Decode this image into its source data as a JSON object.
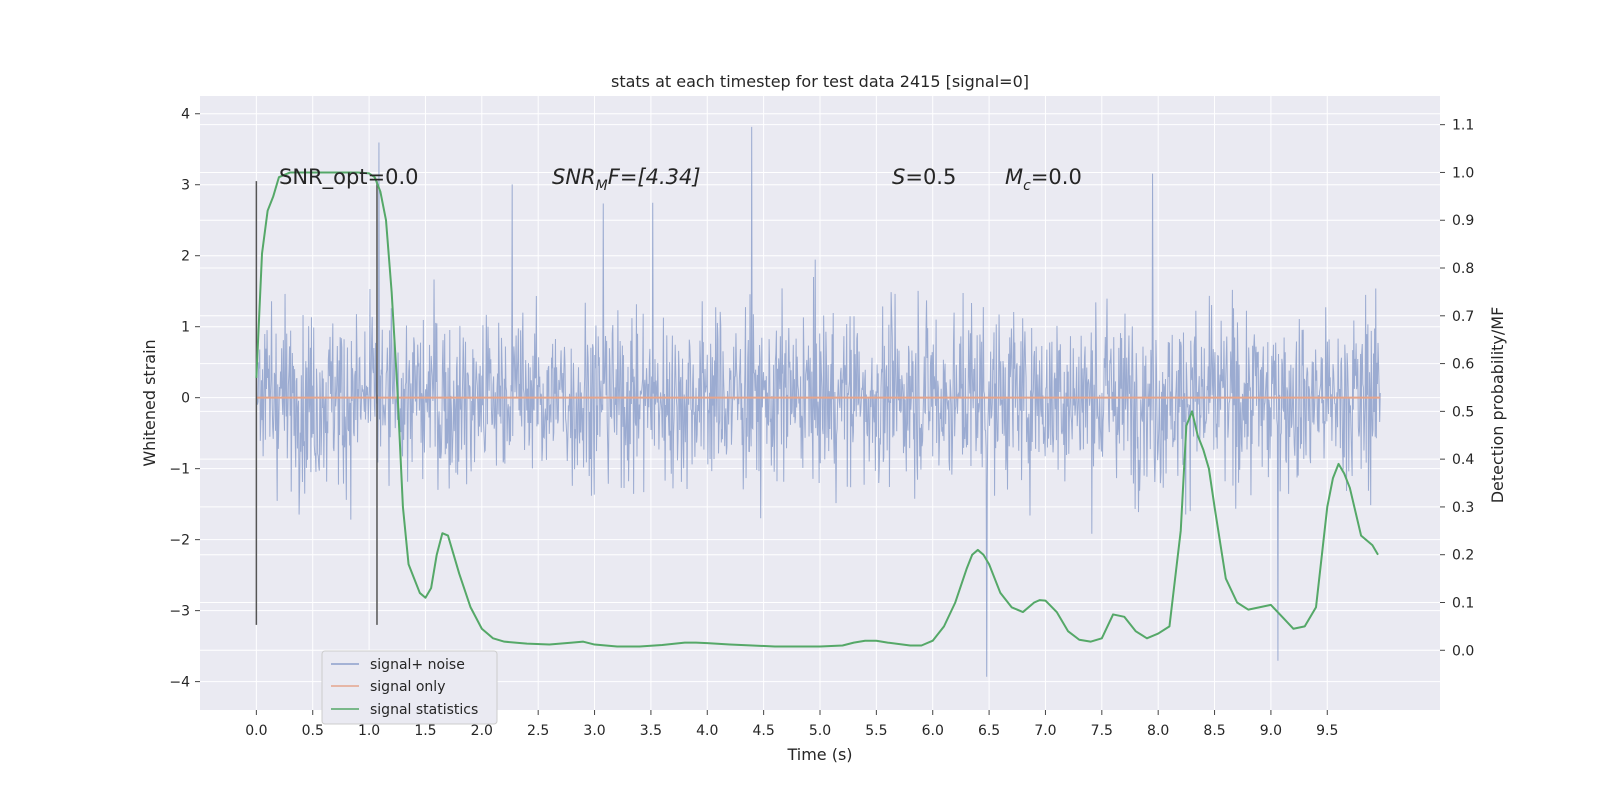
{
  "chart_data": {
    "type": "line",
    "title": "stats at each timestep for test data 2415 [signal=0]",
    "xlabel": "Time (s)",
    "ylabel": "Whitened strain",
    "ylabel_right": "Detection probability/MF",
    "xlim": [
      -0.5,
      10.5
    ],
    "ylim": [
      -4.4,
      4.25
    ],
    "ylim_right": [
      -0.125,
      1.16
    ],
    "x_ticks": [
      "0.0",
      "0.5",
      "1.0",
      "1.5",
      "2.0",
      "2.5",
      "3.0",
      "3.5",
      "4.0",
      "4.5",
      "5.0",
      "5.5",
      "6.0",
      "6.5",
      "7.0",
      "7.5",
      "8.0",
      "8.5",
      "9.0",
      "9.5"
    ],
    "y_ticks": [
      "4",
      "3",
      "2",
      "1",
      "0",
      "−1",
      "−2",
      "−3",
      "−4"
    ],
    "y_ticks_right": [
      "1.1",
      "1.0",
      "0.9",
      "0.8",
      "0.7",
      "0.6",
      "0.5",
      "0.4",
      "0.3",
      "0.2",
      "0.1",
      "0.0"
    ],
    "grid": true,
    "legend_position": "lower-left",
    "annotations": {
      "snr_opt": "SNR_opt=0.0",
      "snr_mf_main": "SNR",
      "snr_mf_sub": "M",
      "snr_mf_rest": "F=[4.34]",
      "s_label": "S",
      "s_value": "=0.5",
      "mc_main": "M",
      "mc_sub": "c",
      "mc_value": "=0.0"
    },
    "vertical_markers": [
      0.0,
      1.07
    ],
    "series": [
      {
        "name": "signal+ noise",
        "color": "#8da0cb",
        "description_kind": "noise",
        "x_range": [
          0.0,
          9.97
        ],
        "typical_range": [
          -1.3,
          1.3
        ],
        "extreme_range": [
          -4.05,
          3.9
        ]
      },
      {
        "name": "signal only",
        "color": "#e5a58c",
        "x": [
          0.0,
          9.97
        ],
        "y": [
          0.0,
          0.0
        ]
      },
      {
        "name": "signal statistics",
        "color": "#55a868",
        "axis": "right",
        "x": [
          0.0,
          0.05,
          0.1,
          0.15,
          0.2,
          0.3,
          0.5,
          0.7,
          0.9,
          1.0,
          1.05,
          1.1,
          1.15,
          1.2,
          1.25,
          1.3,
          1.35,
          1.4,
          1.45,
          1.5,
          1.55,
          1.6,
          1.65,
          1.7,
          1.75,
          1.8,
          1.9,
          2.0,
          2.1,
          2.2,
          2.4,
          2.6,
          2.8,
          2.9,
          3.0,
          3.2,
          3.4,
          3.6,
          3.8,
          3.9,
          4.0,
          4.2,
          4.4,
          4.6,
          4.8,
          5.0,
          5.2,
          5.3,
          5.4,
          5.5,
          5.6,
          5.8,
          5.9,
          6.0,
          6.1,
          6.2,
          6.3,
          6.35,
          6.4,
          6.45,
          6.5,
          6.6,
          6.7,
          6.8,
          6.9,
          6.95,
          7.0,
          7.1,
          7.2,
          7.3,
          7.4,
          7.5,
          7.6,
          7.7,
          7.8,
          7.9,
          8.0,
          8.1,
          8.2,
          8.25,
          8.3,
          8.35,
          8.4,
          8.45,
          8.5,
          8.6,
          8.7,
          8.8,
          8.9,
          9.0,
          9.1,
          9.2,
          9.3,
          9.4,
          9.5,
          9.55,
          9.6,
          9.65,
          9.7,
          9.8,
          9.9,
          9.95
        ],
        "y": [
          0.57,
          0.83,
          0.92,
          0.95,
          0.99,
          1.0,
          1.0,
          1.0,
          1.0,
          0.998,
          0.99,
          0.96,
          0.9,
          0.75,
          0.55,
          0.3,
          0.18,
          0.15,
          0.12,
          0.11,
          0.13,
          0.2,
          0.245,
          0.24,
          0.2,
          0.16,
          0.09,
          0.045,
          0.025,
          0.018,
          0.014,
          0.012,
          0.016,
          0.018,
          0.012,
          0.008,
          0.008,
          0.011,
          0.016,
          0.016,
          0.015,
          0.012,
          0.01,
          0.008,
          0.008,
          0.008,
          0.01,
          0.016,
          0.02,
          0.02,
          0.016,
          0.01,
          0.01,
          0.02,
          0.05,
          0.1,
          0.17,
          0.2,
          0.21,
          0.2,
          0.18,
          0.12,
          0.09,
          0.08,
          0.1,
          0.105,
          0.104,
          0.08,
          0.04,
          0.022,
          0.018,
          0.025,
          0.075,
          0.07,
          0.04,
          0.025,
          0.035,
          0.05,
          0.25,
          0.47,
          0.5,
          0.45,
          0.42,
          0.38,
          0.3,
          0.15,
          0.1,
          0.085,
          0.09,
          0.095,
          0.07,
          0.045,
          0.05,
          0.09,
          0.3,
          0.36,
          0.39,
          0.37,
          0.34,
          0.24,
          0.22,
          0.2
        ]
      }
    ]
  }
}
